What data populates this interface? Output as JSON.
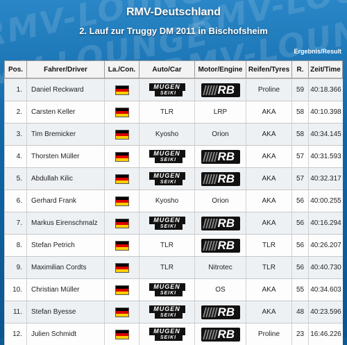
{
  "title": "RMV-Deutschland",
  "subtitle": "2. Lauf zur Truggy DM 2011 in Bischofsheim",
  "result_label": "Ergebnis/Result",
  "watermark": "RMV-LOUNGE",
  "columns": [
    "Pos.",
    "Fahrer/Driver",
    "La./Con.",
    "Auto/Car",
    "Motor/Engine",
    "Reifen/Tyres",
    "R.",
    "Zeit/Time"
  ],
  "flag_colors": [
    "#000000",
    "#dd0000",
    "#ffce00"
  ],
  "logos": {
    "mugen_top": "MUGEN",
    "mugen_bottom": "SEIKI",
    "rb": "RB"
  },
  "rows": [
    {
      "pos": "1.",
      "driver": "Daniel Reckward",
      "car": "",
      "car_logo": "mugen",
      "engine": "",
      "engine_logo": "rb",
      "tyres": "Proline",
      "rounds": "59",
      "time": "40:18.366"
    },
    {
      "pos": "2.",
      "driver": "Carsten Keller",
      "car": "TLR",
      "car_logo": "",
      "engine": "LRP",
      "engine_logo": "",
      "tyres": "AKA",
      "rounds": "58",
      "time": "40:10.398"
    },
    {
      "pos": "3.",
      "driver": "Tim Bremicker",
      "car": "Kyosho",
      "car_logo": "",
      "engine": "Orion",
      "engine_logo": "",
      "tyres": "AKA",
      "rounds": "58",
      "time": "40:34.145"
    },
    {
      "pos": "4.",
      "driver": "Thorsten Müller",
      "car": "",
      "car_logo": "mugen",
      "engine": "",
      "engine_logo": "rb",
      "tyres": "AKA",
      "rounds": "57",
      "time": "40:31.593"
    },
    {
      "pos": "5.",
      "driver": "Abdullah Kilic",
      "car": "",
      "car_logo": "mugen",
      "engine": "",
      "engine_logo": "rb",
      "tyres": "AKA",
      "rounds": "57",
      "time": "40:32.317"
    },
    {
      "pos": "6.",
      "driver": "Gerhard Frank",
      "car": "Kyosho",
      "car_logo": "",
      "engine": "Orion",
      "engine_logo": "",
      "tyres": "AKA",
      "rounds": "56",
      "time": "40:00.255"
    },
    {
      "pos": "7.",
      "driver": "Markus Eirenschmalz",
      "car": "",
      "car_logo": "mugen",
      "engine": "",
      "engine_logo": "rb",
      "tyres": "AKA",
      "rounds": "56",
      "time": "40:16.294"
    },
    {
      "pos": "8.",
      "driver": "Stefan Petrich",
      "car": "TLR",
      "car_logo": "",
      "engine": "",
      "engine_logo": "rb",
      "tyres": "TLR",
      "rounds": "56",
      "time": "40:26.207"
    },
    {
      "pos": "9.",
      "driver": "Maximilian Cordts",
      "car": "TLR",
      "car_logo": "",
      "engine": "Nitrotec",
      "engine_logo": "",
      "tyres": "TLR",
      "rounds": "56",
      "time": "40:40.730"
    },
    {
      "pos": "10.",
      "driver": "Christian Müller",
      "car": "",
      "car_logo": "mugen",
      "engine": "OS",
      "engine_logo": "",
      "tyres": "AKA",
      "rounds": "55",
      "time": "40:34.603"
    },
    {
      "pos": "11.",
      "driver": "Stefan Byesse",
      "car": "",
      "car_logo": "mugen",
      "engine": "",
      "engine_logo": "rb",
      "tyres": "AKA",
      "rounds": "48",
      "time": "40:23.596"
    },
    {
      "pos": "12.",
      "driver": "Julien Schmidt",
      "car": "",
      "car_logo": "mugen",
      "engine": "",
      "engine_logo": "rb",
      "tyres": "Proline",
      "rounds": "23",
      "time": "16:46.226"
    }
  ]
}
